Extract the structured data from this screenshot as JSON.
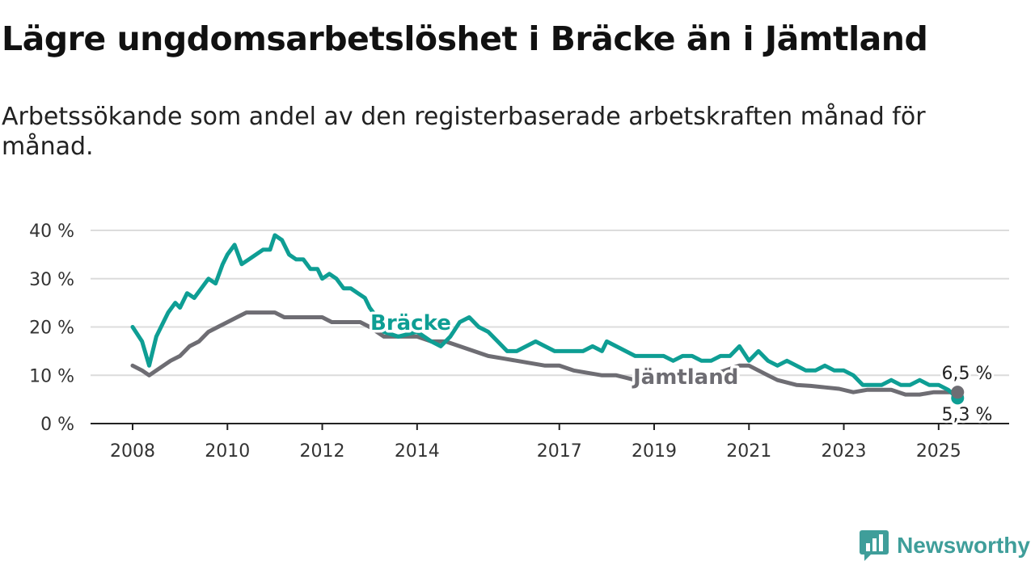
{
  "title": "Lägre ungdomsarbetslöshet i Bräcke än i Jämtland",
  "subtitle": "Arbetssökande som andel av den registerbaserade arbetskraften månad för månad.",
  "brand": {
    "name": "Newsworthy"
  },
  "colors": {
    "bracke": "#0e9e94",
    "jamtland": "#6e6d73",
    "grid": "#dcdcdc",
    "axis": "#222222",
    "brand": "#3f9e9a"
  },
  "chart_data": {
    "type": "line",
    "title": "Lägre ungdomsarbetslöshet i Bräcke än i Jämtland",
    "xlabel": "",
    "ylabel": "",
    "xlim": [
      2008,
      2025.6
    ],
    "ylim": [
      0,
      40
    ],
    "y_ticks": [
      0,
      10,
      20,
      30,
      40
    ],
    "y_tick_labels": [
      "0 %",
      "10 %",
      "20 %",
      "30 %",
      "40 %"
    ],
    "x_ticks": [
      2008,
      2010,
      2012,
      2014,
      2017,
      2019,
      2021,
      2023,
      2025
    ],
    "x_tick_labels": [
      "2008",
      "2010",
      "2012",
      "2014",
      "2017",
      "2019",
      "2021",
      "2023",
      "2025"
    ],
    "grid": true,
    "legend": "inline labels",
    "series": [
      {
        "name": "Bräcke",
        "end_label": "5,3 %",
        "x": [
          2008.0,
          2008.2,
          2008.35,
          2008.5,
          2008.65,
          2008.75,
          2008.9,
          2009.0,
          2009.15,
          2009.3,
          2009.45,
          2009.6,
          2009.75,
          2009.9,
          2010.0,
          2010.15,
          2010.3,
          2010.45,
          2010.6,
          2010.75,
          2010.9,
          2011.0,
          2011.15,
          2011.3,
          2011.45,
          2011.6,
          2011.75,
          2011.9,
          2012.0,
          2012.15,
          2012.3,
          2012.45,
          2012.6,
          2012.75,
          2012.9,
          2013.0,
          2013.15,
          2013.3,
          2013.6,
          2014.0,
          2014.3,
          2014.5,
          2014.7,
          2014.9,
          2015.1,
          2015.3,
          2015.5,
          2015.7,
          2015.9,
          2016.1,
          2016.3,
          2016.5,
          2016.7,
          2016.9,
          2017.1,
          2017.3,
          2017.5,
          2017.7,
          2017.9,
          2018.0,
          2018.2,
          2018.4,
          2018.6,
          2018.8,
          2019.0,
          2019.2,
          2019.4,
          2019.6,
          2019.8,
          2020.0,
          2020.2,
          2020.4,
          2020.6,
          2020.8,
          2021.0,
          2021.2,
          2021.4,
          2021.6,
          2021.8,
          2022.0,
          2022.2,
          2022.4,
          2022.6,
          2022.8,
          2023.0,
          2023.2,
          2023.4,
          2023.6,
          2023.8,
          2024.0,
          2024.2,
          2024.4,
          2024.6,
          2024.8,
          2025.0,
          2025.2,
          2025.4
        ],
        "values": [
          20,
          17,
          12,
          18,
          21,
          23,
          25,
          24,
          27,
          26,
          28,
          30,
          29,
          33,
          35,
          37,
          33,
          34,
          35,
          36,
          36,
          39,
          38,
          35,
          34,
          34,
          32,
          32,
          30,
          31,
          30,
          28,
          28,
          27,
          26,
          24,
          22,
          19,
          18,
          19,
          17,
          16,
          18,
          21,
          22,
          20,
          19,
          17,
          15,
          15,
          16,
          17,
          16,
          15,
          15,
          15,
          15,
          16,
          15,
          17,
          16,
          15,
          14,
          14,
          14,
          14,
          13,
          14,
          14,
          13,
          13,
          14,
          14,
          16,
          13,
          15,
          13,
          12,
          13,
          12,
          11,
          11,
          12,
          11,
          11,
          10,
          8,
          8,
          8,
          9,
          8,
          8,
          9,
          8,
          8,
          7,
          5.3
        ]
      },
      {
        "name": "Jämtland",
        "end_label": "6,5 %",
        "x": [
          2008.0,
          2008.2,
          2008.35,
          2008.5,
          2008.65,
          2008.8,
          2009.0,
          2009.2,
          2009.4,
          2009.6,
          2009.8,
          2010.0,
          2010.2,
          2010.4,
          2010.6,
          2010.8,
          2011.0,
          2011.2,
          2011.4,
          2011.6,
          2011.8,
          2012.0,
          2012.2,
          2012.4,
          2012.6,
          2012.8,
          2013.0,
          2013.3,
          2013.6,
          2014.0,
          2014.3,
          2014.6,
          2014.9,
          2015.2,
          2015.5,
          2015.8,
          2016.1,
          2016.4,
          2016.7,
          2017.0,
          2017.3,
          2017.6,
          2017.9,
          2018.2,
          2018.4,
          2018.6,
          2018.8,
          2019.0,
          2019.3,
          2019.6,
          2019.9,
          2020.2,
          2020.5,
          2020.8,
          2021.0,
          2021.2,
          2021.4,
          2021.6,
          2021.8,
          2022.0,
          2022.3,
          2022.6,
          2022.9,
          2023.2,
          2023.5,
          2023.8,
          2024.0,
          2024.3,
          2024.6,
          2024.9,
          2025.2,
          2025.4
        ],
        "values": [
          12,
          11,
          10,
          11,
          12,
          13,
          14,
          16,
          17,
          19,
          20,
          21,
          22,
          23,
          23,
          23,
          23,
          22,
          22,
          22,
          22,
          22,
          21,
          21,
          21,
          21,
          20,
          18,
          18,
          18,
          17,
          17,
          16,
          15,
          14,
          13.5,
          13,
          12.5,
          12,
          12,
          11,
          10.5,
          10,
          10,
          9.5,
          9,
          8.8,
          8.7,
          8.6,
          8.8,
          9,
          10,
          11,
          12,
          12,
          11,
          10,
          9,
          8.5,
          8,
          7.8,
          7.5,
          7.2,
          6.5,
          7,
          7,
          7,
          6,
          6,
          6.5,
          6.5,
          6.5
        ]
      }
    ]
  }
}
